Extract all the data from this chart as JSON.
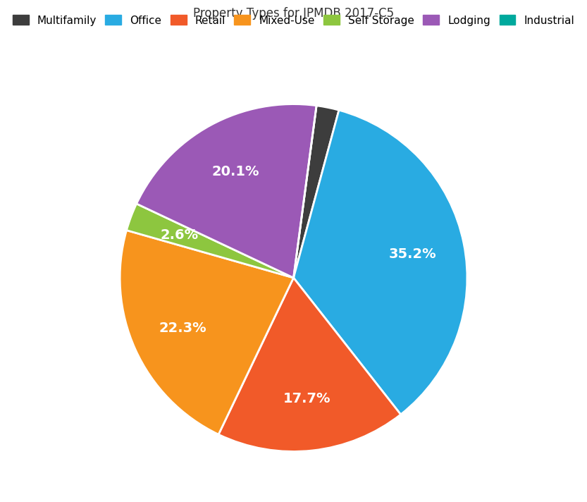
{
  "title": "Property Types for JPMDB 2017-C5",
  "categories": [
    "Multifamily",
    "Office",
    "Retail",
    "Mixed-Use",
    "Self Storage",
    "Lodging",
    "Industrial"
  ],
  "values": [
    2.1,
    35.2,
    17.7,
    22.3,
    2.6,
    20.1,
    0.0
  ],
  "colors": [
    "#3d3d3d",
    "#29abe2",
    "#f15a29",
    "#f7941d",
    "#8dc63f",
    "#9b59b6",
    "#00a99d"
  ],
  "autopct_labels": [
    "",
    "35.2%",
    "17.7%",
    "22.3%",
    "2.6%",
    "20.1%",
    ""
  ],
  "startangle": 82.4,
  "background_color": "#ffffff",
  "text_color": "#ffffff",
  "title_fontsize": 12,
  "label_fontsize": 14,
  "pctdistance": 0.7
}
